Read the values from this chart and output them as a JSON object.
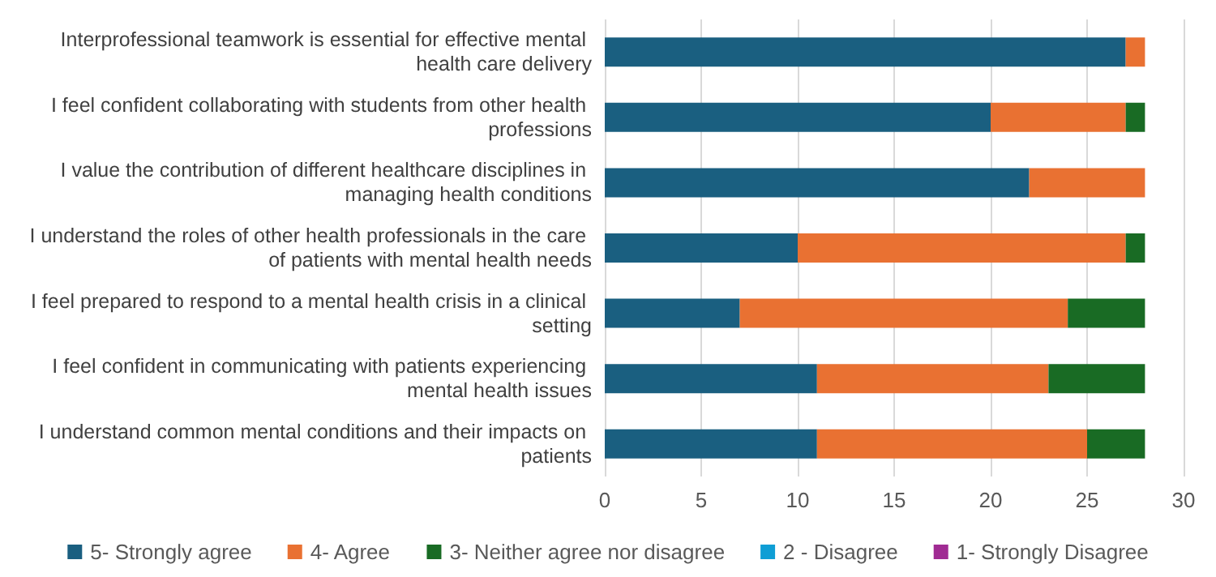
{
  "chart_data": {
    "type": "bar",
    "orientation": "horizontal",
    "stacked": true,
    "categories": [
      "Interprofessional teamwork is essential for effective mental health care delivery",
      "I feel confident collaborating with students from other health professions",
      "I value the contribution of different healthcare disciplines in managing health conditions",
      "I understand the roles of other health professionals in the care of patients with mental health needs",
      "I feel prepared to respond to a mental health crisis in a clinical setting",
      "I feel confident in communicating with patients experiencing mental health issues",
      "I understand common mental conditions and their impacts on patients"
    ],
    "series": [
      {
        "name": "5- Strongly agree",
        "color": "#1a5f80",
        "values": [
          27,
          20,
          22,
          10,
          7,
          11,
          11
        ]
      },
      {
        "name": "4- Agree",
        "color": "#e97132",
        "values": [
          1,
          7,
          6,
          17,
          17,
          12,
          14
        ]
      },
      {
        "name": "3- Neither agree nor disagree",
        "color": "#196b24",
        "values": [
          0,
          1,
          0,
          1,
          4,
          5,
          3
        ]
      },
      {
        "name": "2 - Disagree",
        "color": "#0f9ed5",
        "values": [
          0,
          0,
          0,
          0,
          0,
          0,
          0
        ]
      },
      {
        "name": "1- Strongly Disagree",
        "color": "#a02b93",
        "values": [
          0,
          0,
          0,
          0,
          0,
          0,
          0
        ]
      }
    ],
    "xlim": [
      0,
      30
    ],
    "xticks": [
      0,
      5,
      10,
      15,
      20,
      25,
      30
    ],
    "grid": "x",
    "legend": "bottom"
  }
}
